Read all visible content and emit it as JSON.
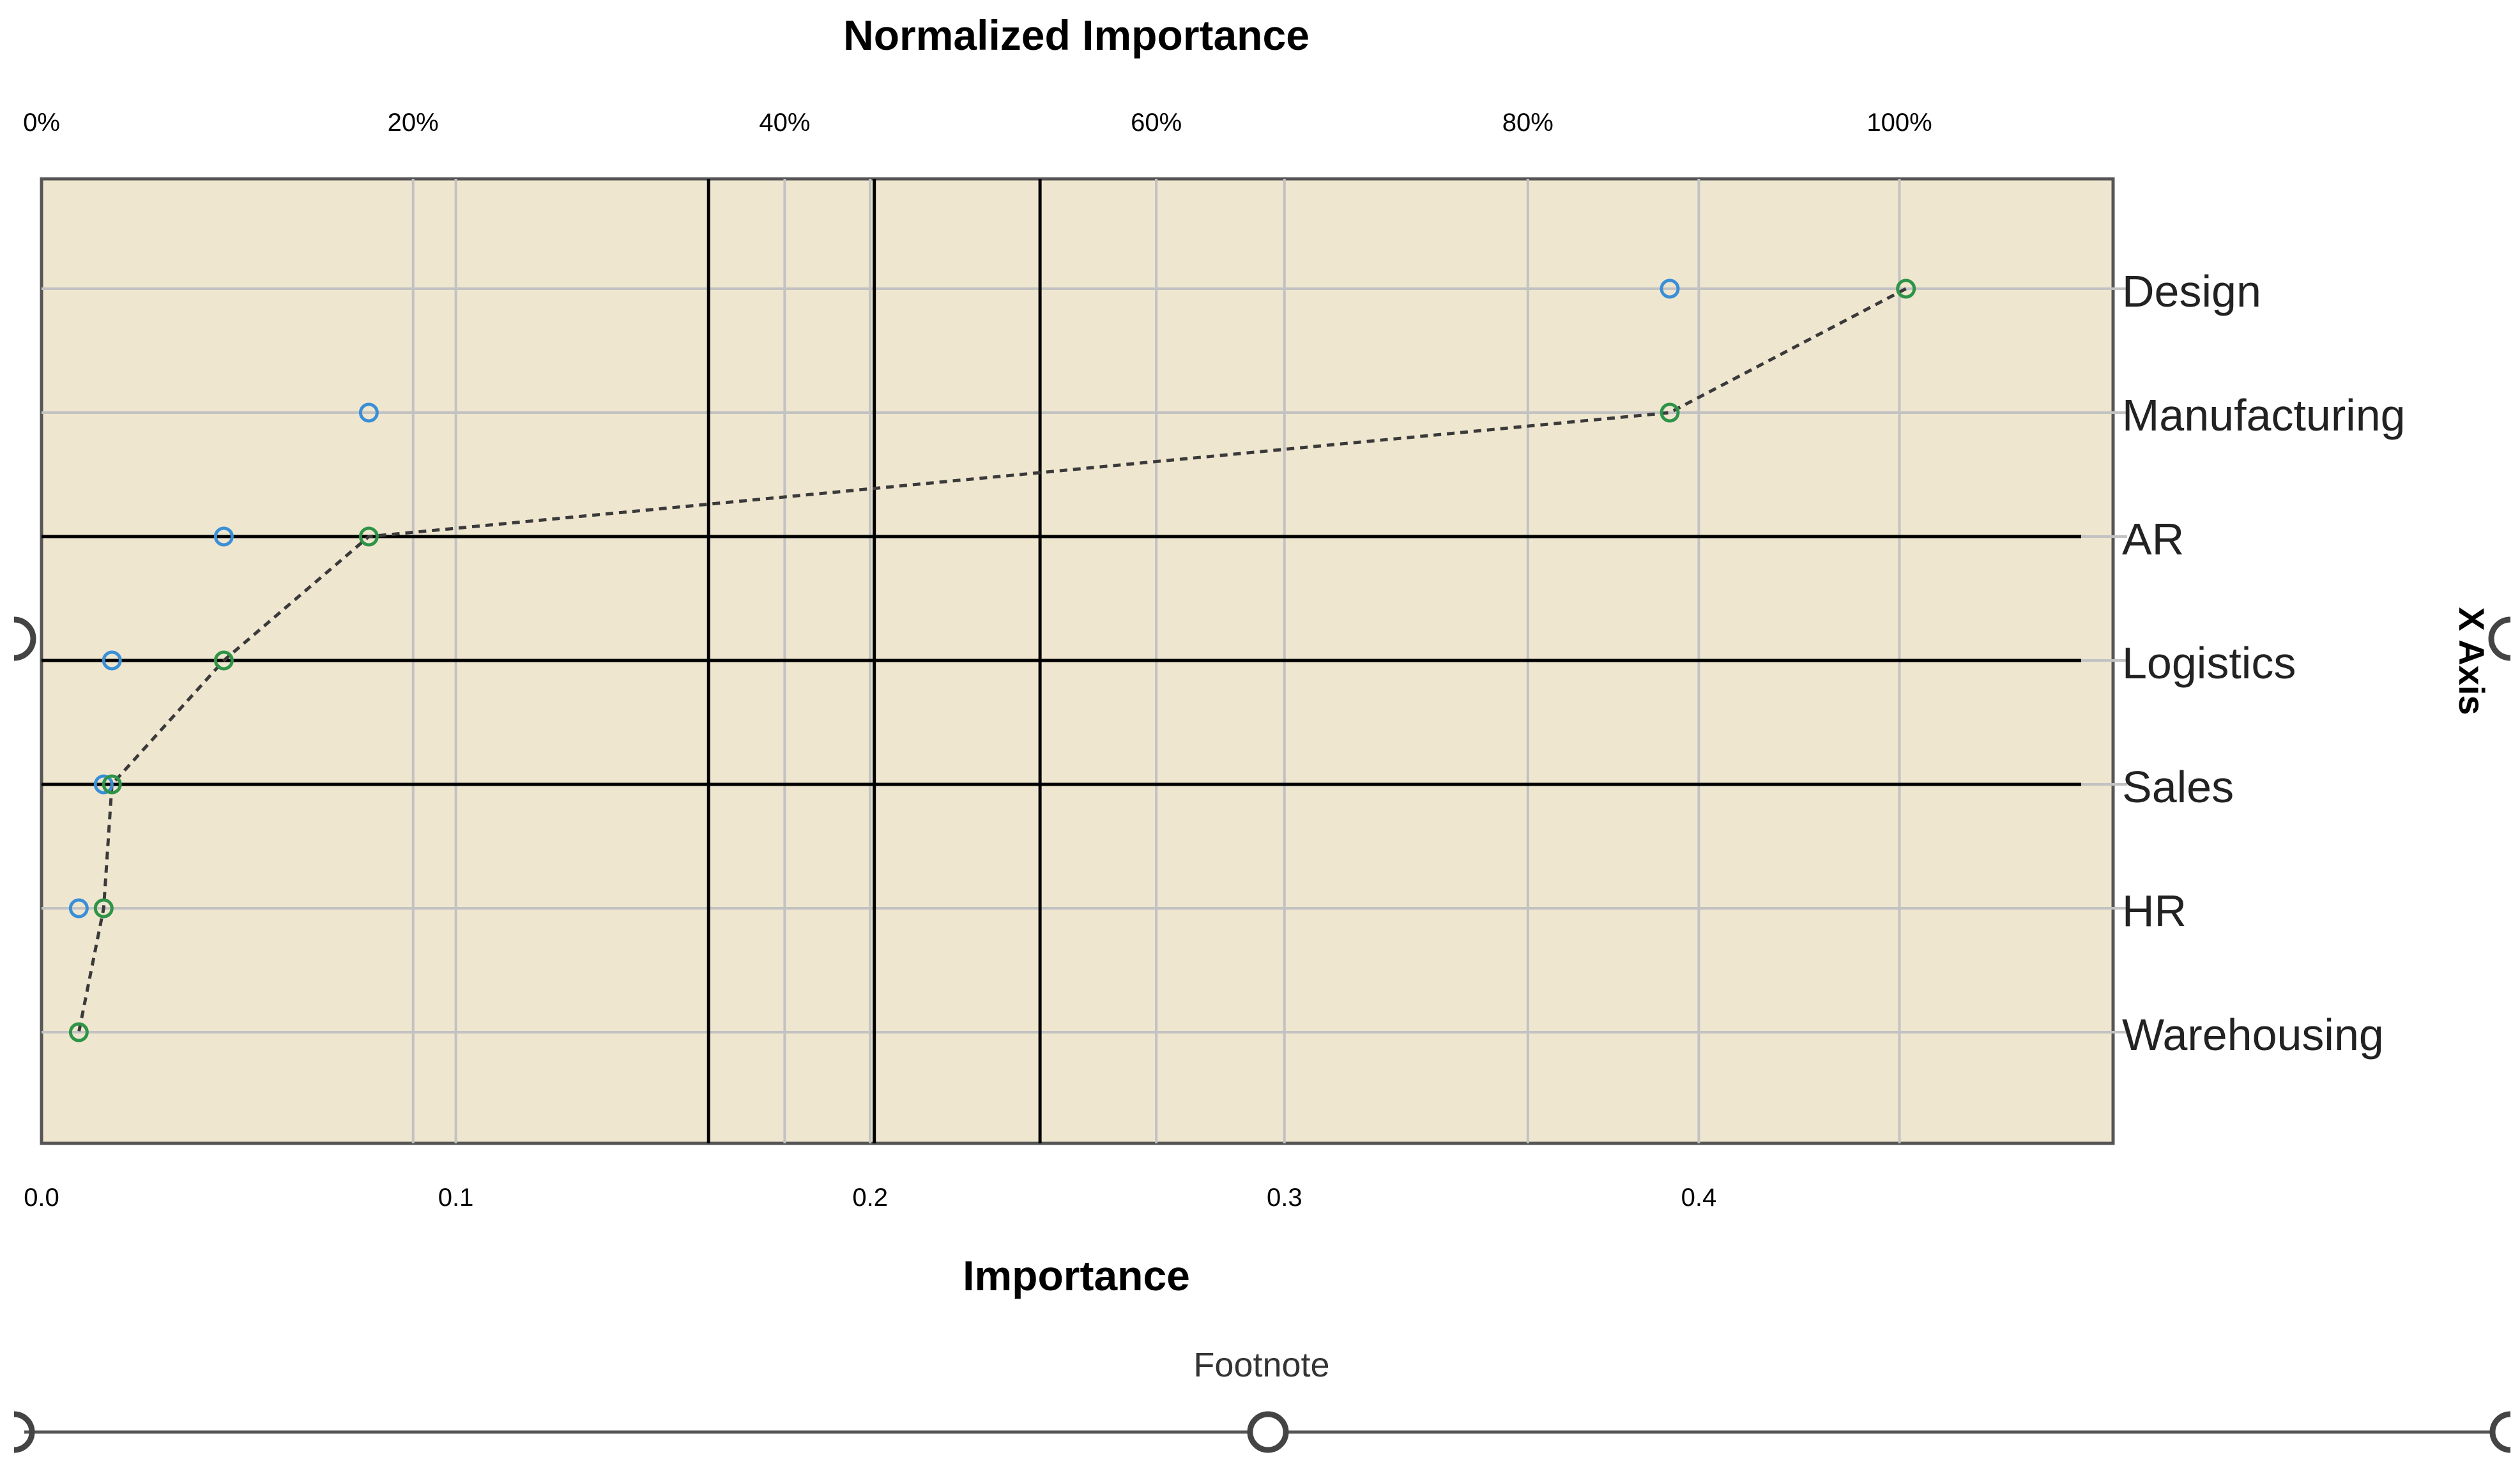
{
  "chart_data": {
    "type": "scatter",
    "title": "",
    "top_axis_title": "Normalized Importance",
    "bottom_axis_title": "Importance",
    "right_axis_title": "X Axis",
    "footnote": "Footnote",
    "x_bottom": {
      "range": [
        0,
        0.5
      ],
      "ticks": [
        0.0,
        0.1,
        0.2,
        0.3,
        0.4
      ],
      "tick_labels": [
        "0.0",
        "0.1",
        "0.2",
        "0.3",
        "0.4"
      ]
    },
    "x_top": {
      "range": [
        0,
        1.115
      ],
      "ticks": [
        0,
        0.2,
        0.4,
        0.6,
        0.8,
        1.0
      ],
      "tick_labels": [
        "0%",
        "20%",
        "40%",
        "60%",
        "80%",
        "100%"
      ]
    },
    "categories": [
      "Design",
      "Manufacturing",
      "AR",
      "Logistics",
      "Sales",
      "HR",
      "Warehousing"
    ],
    "series": [
      {
        "color": "#3a8fd6",
        "line": "none",
        "values": [
          0.393,
          0.079,
          0.044,
          0.017,
          0.015,
          0.009,
          null
        ]
      },
      {
        "color": "#2e9448",
        "line": "dashed",
        "values": [
          0.45,
          0.393,
          0.079,
          0.044,
          0.017,
          0.015,
          0.009
        ]
      }
    ],
    "vertical_reference_lines": [
      0.161,
      0.201,
      0.241
    ],
    "horizontal_reference_categories": [
      "AR",
      "Logistics",
      "Sales"
    ],
    "grid": true,
    "plot_background": "#efe6d0"
  }
}
